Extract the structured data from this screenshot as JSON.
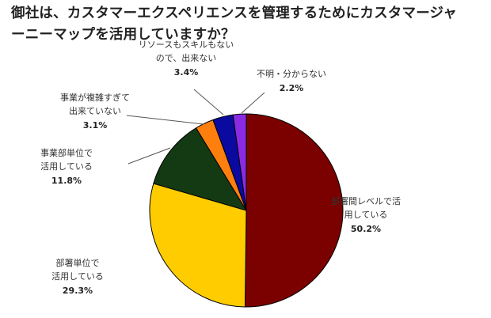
{
  "chart_data": {
    "type": "pie",
    "title": "御社は、カスタマーエクスペリエンスを管理するためにカスタマージャーニーマップを活用していますか？",
    "title_lines": [
      "御社は、カスタマーエクスペリエンスを管理するためにカスタマージャ",
      "ーニーマップを活用していますか？"
    ],
    "slices": [
      {
        "label_lines": [
          "部署間レベルで活",
          "用している"
        ],
        "value": 50.2,
        "value_label": "50.2%",
        "color": "#7b0000"
      },
      {
        "label_lines": [
          "部署単位で",
          "活用している"
        ],
        "value": 29.3,
        "value_label": "29.3%",
        "color": "#ffcc00"
      },
      {
        "label_lines": [
          "事業部単位で",
          "活用している"
        ],
        "value": 11.8,
        "value_label": "11.8%",
        "color": "#143a14"
      },
      {
        "label_lines": [
          "事業が複雑すぎて",
          "出来ていない"
        ],
        "value": 3.1,
        "value_label": "3.1%",
        "color": "#ff7f0e"
      },
      {
        "label_lines": [
          "リソースもスキルもない",
          "ので、出来ない"
        ],
        "value": 3.4,
        "value_label": "3.4%",
        "color": "#0a0aa0"
      },
      {
        "label_lines": [
          "不明・分からない"
        ],
        "value": 2.2,
        "value_label": "2.2%",
        "color": "#8a2be2"
      }
    ],
    "start": "12 o'clock",
    "direction": "clockwise",
    "legend": "none"
  }
}
